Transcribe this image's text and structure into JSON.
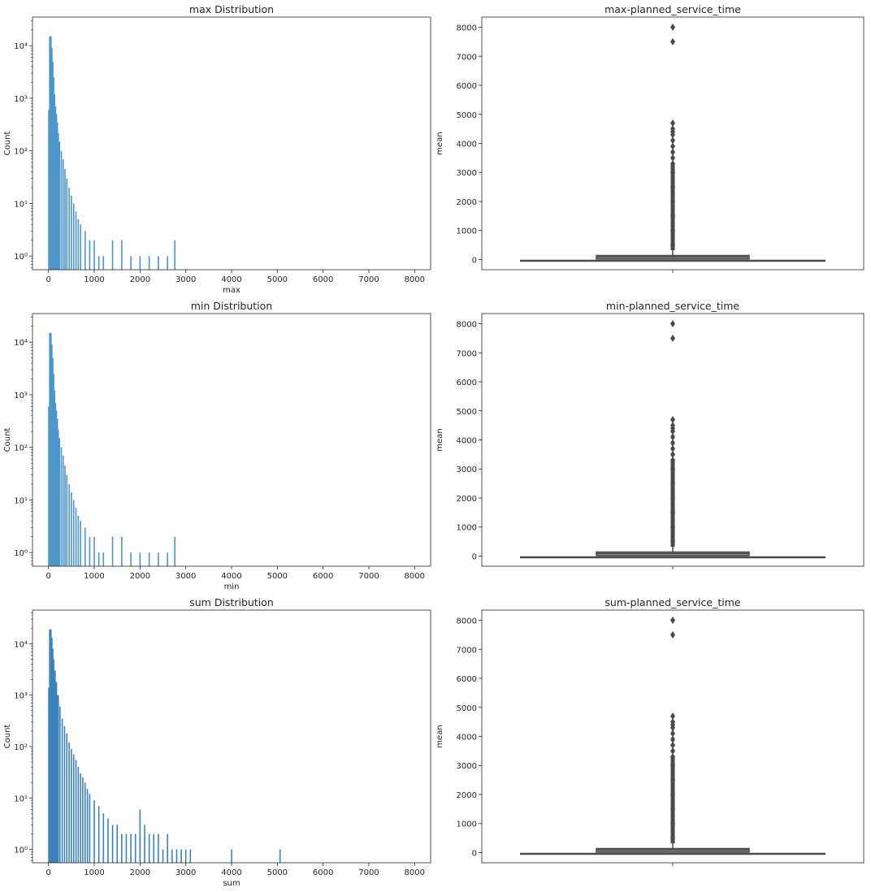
{
  "chart_data": [
    {
      "type": "bar",
      "subtype": "histogram",
      "title": "max Distribution",
      "xlabel": "max",
      "ylabel": "Count",
      "yscale": "log",
      "xlim": [
        -350,
        8350
      ],
      "xticks": [
        0,
        1000,
        2000,
        3000,
        4000,
        5000,
        6000,
        7000,
        8000
      ],
      "ylim": [
        0.55,
        35000
      ],
      "yticks": [
        1,
        10,
        100,
        1000,
        10000
      ],
      "ytick_labels": [
        "10⁰",
        "10¹",
        "10²",
        "10³",
        "10⁴"
      ],
      "bar_color": "#4c96c9",
      "grid": false,
      "x": [
        20,
        40,
        60,
        80,
        100,
        120,
        140,
        160,
        180,
        200,
        240,
        280,
        320,
        360,
        400,
        450,
        500,
        550,
        600,
        650,
        700,
        800,
        900,
        1000,
        1100,
        1200,
        1400,
        1600,
        1800,
        2000,
        2200,
        2400,
        2600,
        2760
      ],
      "values": [
        600,
        15000,
        9000,
        5000,
        2500,
        1200,
        700,
        500,
        350,
        220,
        150,
        100,
        70,
        45,
        30,
        20,
        14,
        10,
        7,
        5,
        4,
        3,
        2,
        2,
        1,
        1,
        2,
        2,
        1,
        1,
        1,
        1,
        1,
        2
      ]
    },
    {
      "type": "box",
      "title": "max-planned_service_time",
      "xlabel": "",
      "ylabel": "mean",
      "ylim": [
        -350,
        8350
      ],
      "yticks": [
        0,
        1000,
        2000,
        3000,
        4000,
        5000,
        6000,
        7000,
        8000
      ],
      "box": {
        "q1": 20,
        "median": 90,
        "q3": 140,
        "whisker_low": 0,
        "whisker_high": 320
      },
      "outliers": [
        8000,
        7500,
        4700,
        4500,
        4400,
        4300,
        4100,
        3900,
        3700,
        3500,
        3300,
        3000,
        2500,
        2000,
        1500,
        1000,
        500
      ],
      "box_color": "#4a4a4a",
      "grid": false
    },
    {
      "type": "bar",
      "subtype": "histogram",
      "title": "min Distribution",
      "xlabel": "min",
      "ylabel": "Count",
      "yscale": "log",
      "xlim": [
        -350,
        8350
      ],
      "xticks": [
        0,
        1000,
        2000,
        3000,
        4000,
        5000,
        6000,
        7000,
        8000
      ],
      "ylim": [
        0.55,
        35000
      ],
      "yticks": [
        1,
        10,
        100,
        1000,
        10000
      ],
      "ytick_labels": [
        "10⁰",
        "10¹",
        "10²",
        "10³",
        "10⁴"
      ],
      "bar_color": "#4c96c9",
      "grid": false,
      "x": [
        20,
        40,
        60,
        80,
        100,
        120,
        140,
        160,
        180,
        200,
        240,
        280,
        320,
        360,
        400,
        450,
        500,
        550,
        600,
        650,
        700,
        800,
        900,
        1000,
        1100,
        1200,
        1400,
        1600,
        1800,
        2000,
        2200,
        2400,
        2600,
        2760
      ],
      "values": [
        600,
        15000,
        9000,
        5000,
        2500,
        1200,
        700,
        500,
        350,
        220,
        150,
        100,
        70,
        45,
        30,
        20,
        14,
        10,
        7,
        5,
        4,
        3,
        2,
        2,
        1,
        1,
        2,
        2,
        1,
        1,
        1,
        1,
        1,
        2
      ]
    },
    {
      "type": "box",
      "title": "min-planned_service_time",
      "xlabel": "",
      "ylabel": "mean",
      "ylim": [
        -350,
        8350
      ],
      "yticks": [
        0,
        1000,
        2000,
        3000,
        4000,
        5000,
        6000,
        7000,
        8000
      ],
      "box": {
        "q1": 20,
        "median": 90,
        "q3": 140,
        "whisker_low": 0,
        "whisker_high": 320
      },
      "outliers": [
        8000,
        7500,
        4700,
        4500,
        4400,
        4300,
        4100,
        3900,
        3700,
        3500,
        3300,
        3000,
        2500,
        2000,
        1500,
        1000,
        500
      ],
      "box_color": "#4a4a4a",
      "grid": false
    },
    {
      "type": "bar",
      "subtype": "histogram",
      "title": "sum Distribution",
      "xlabel": "sum",
      "ylabel": "Count",
      "yscale": "log",
      "xlim": [
        -350,
        8350
      ],
      "xticks": [
        0,
        1000,
        2000,
        3000,
        4000,
        5000,
        6000,
        7000,
        8000
      ],
      "ylim": [
        0.55,
        45000
      ],
      "yticks": [
        1,
        10,
        100,
        1000,
        10000
      ],
      "ytick_labels": [
        "10⁰",
        "10¹",
        "10²",
        "10³",
        "10⁴"
      ],
      "bar_color": "#3d82b8",
      "grid": false,
      "x": [
        20,
        40,
        60,
        80,
        100,
        130,
        160,
        200,
        250,
        300,
        350,
        400,
        450,
        500,
        550,
        600,
        650,
        700,
        750,
        800,
        850,
        900,
        1000,
        1100,
        1200,
        1300,
        1400,
        1500,
        1600,
        1700,
        1800,
        1900,
        2000,
        2100,
        2200,
        2300,
        2400,
        2500,
        2600,
        2700,
        2800,
        2900,
        3000,
        3100,
        4000,
        5060
      ],
      "values": [
        1400,
        19000,
        13000,
        8000,
        5000,
        3000,
        1800,
        1000,
        600,
        350,
        250,
        180,
        120,
        90,
        70,
        55,
        40,
        30,
        25,
        20,
        15,
        12,
        9,
        7,
        5,
        4,
        3,
        3,
        2,
        2,
        2,
        2,
        6,
        3,
        2,
        2,
        2,
        1,
        2,
        1,
        1,
        1,
        1,
        1,
        1,
        1
      ]
    },
    {
      "type": "box",
      "title": "sum-planned_service_time",
      "xlabel": "",
      "ylabel": "mean",
      "ylim": [
        -350,
        8350
      ],
      "yticks": [
        0,
        1000,
        2000,
        3000,
        4000,
        5000,
        6000,
        7000,
        8000
      ],
      "box": {
        "q1": 20,
        "median": 90,
        "q3": 140,
        "whisker_low": 0,
        "whisker_high": 320
      },
      "outliers": [
        8000,
        7500,
        4700,
        4500,
        4400,
        4300,
        4100,
        3900,
        3700,
        3500,
        3300,
        3000,
        2500,
        2000,
        1500,
        1000,
        500
      ],
      "box_color": "#4a4a4a",
      "grid": false
    }
  ]
}
